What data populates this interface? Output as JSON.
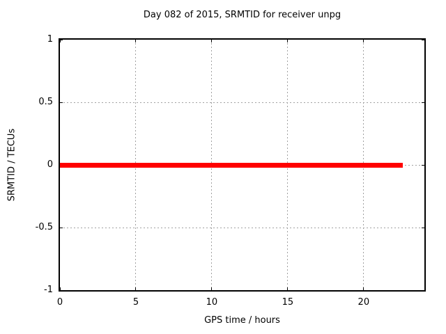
{
  "window": {
    "background": "#ffffff"
  },
  "colors": {
    "text": "#000000",
    "border": "#000000",
    "grid": "#a0a0a0",
    "series_red": "#ff0000"
  },
  "chart_data": {
    "type": "line",
    "title": "Day 082 of 2015, SRMTID for receiver unpg",
    "xlabel": "GPS time / hours",
    "ylabel": "SRMTID / TECUs",
    "xlim": [
      0,
      24
    ],
    "ylim": [
      -1,
      1
    ],
    "grid": true,
    "legend": "none",
    "xticks": [
      {
        "value": 0,
        "label": "0"
      },
      {
        "value": 5,
        "label": "5"
      },
      {
        "value": 10,
        "label": "10"
      },
      {
        "value": 15,
        "label": "15"
      },
      {
        "value": 20,
        "label": "20"
      }
    ],
    "yticks": [
      {
        "value": -1,
        "label": "-1"
      },
      {
        "value": -0.5,
        "label": "-0.5"
      },
      {
        "value": 0,
        "label": "0"
      },
      {
        "value": 0.5,
        "label": "0.5"
      },
      {
        "value": 1,
        "label": "1"
      }
    ],
    "series": [
      {
        "name": "SRMTID",
        "color": "#ff0000",
        "line_width": 7,
        "points": [
          [
            0,
            0
          ],
          [
            22.6,
            0
          ]
        ]
      }
    ]
  }
}
